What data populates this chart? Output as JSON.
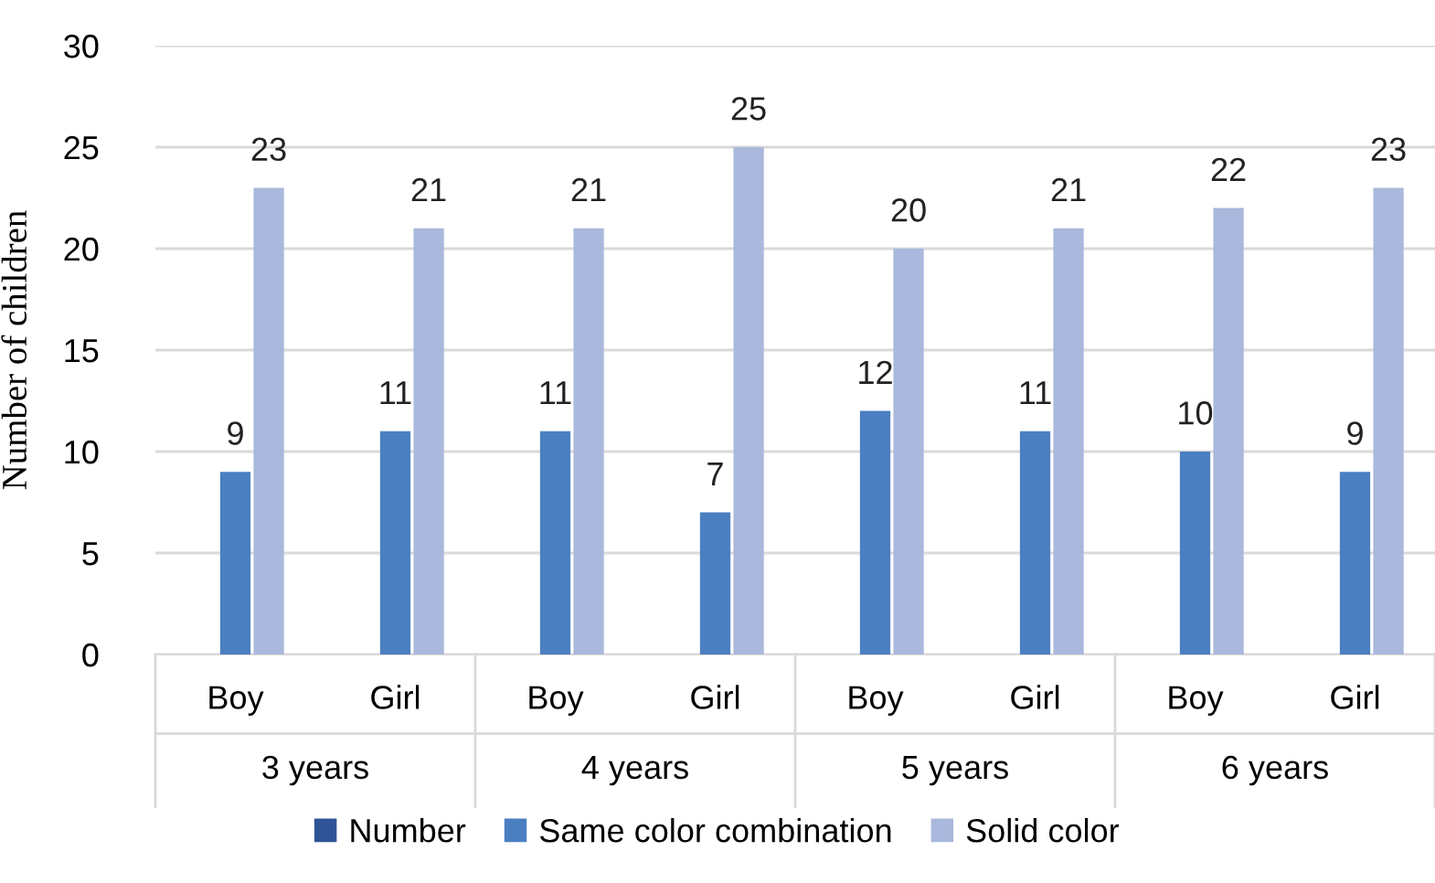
{
  "chart_data": {
    "type": "bar",
    "ylabel": "Number of children",
    "categories": [
      "Boy",
      "Girl",
      "Boy",
      "Girl",
      "Boy",
      "Girl",
      "Boy",
      "Girl"
    ],
    "annotations": [
      "3 years",
      "4 years",
      "5 years",
      "6 years"
    ],
    "series": [
      {
        "name": "Number",
        "color": "#2f5597",
        "values": [
          null,
          null,
          null,
          null,
          null,
          null,
          null,
          null
        ]
      },
      {
        "name": "Same color combination",
        "color": "#4a7fc1",
        "values": [
          9,
          11,
          11,
          7,
          12,
          11,
          10,
          9
        ]
      },
      {
        "name": "Solid color",
        "color": "#a9b8dc",
        "values": [
          23,
          21,
          21,
          25,
          20,
          21,
          22,
          23
        ]
      }
    ],
    "ylim": [
      0,
      30
    ],
    "yticks": [
      0,
      5,
      10,
      15,
      20,
      25,
      30
    ],
    "grid": "y",
    "legend": "bottom",
    "data_labels": true
  }
}
